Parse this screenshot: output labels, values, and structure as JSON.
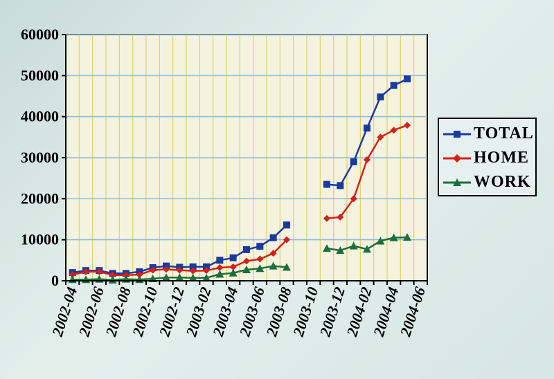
{
  "chart_data": {
    "type": "line",
    "title": "",
    "xlabel": "",
    "ylabel": "",
    "ylim": [
      0,
      60000
    ],
    "y_ticks": [
      0,
      10000,
      20000,
      30000,
      40000,
      50000,
      60000
    ],
    "x_tick_labels": [
      "2002-04",
      "2002-06",
      "2002-08",
      "2002-10",
      "2002-12",
      "2003-02",
      "2003-04",
      "2003-06",
      "2003-08",
      "2003-10",
      "2003-12",
      "2004-02",
      "2004-04",
      "2004-06"
    ],
    "x": [
      "2002-04",
      "2002-05",
      "2002-06",
      "2002-07",
      "2002-08",
      "2002-09",
      "2002-10",
      "2002-11",
      "2002-12",
      "2003-01",
      "2003-02",
      "2003-03",
      "2003-04",
      "2003-05",
      "2003-06",
      "2003-07",
      "2003-08",
      "2003-09",
      "2003-10",
      "2003-11",
      "2003-12",
      "2004-01",
      "2004-02",
      "2004-03",
      "2004-04",
      "2004-05",
      "2004-06"
    ],
    "grid": true,
    "legend_position": "right",
    "series": [
      {
        "name": "TOTAL",
        "color": "#1a3a9e",
        "marker": "square",
        "values": [
          2000,
          2500,
          2500,
          1800,
          1800,
          2200,
          3200,
          3600,
          3300,
          3400,
          3400,
          5000,
          5600,
          7600,
          8400,
          10500,
          13600,
          null,
          null,
          23500,
          23200,
          29000,
          37200,
          44800,
          47600,
          49200,
          null
        ]
      },
      {
        "name": "HOME",
        "color": "#d42018",
        "marker": "diamond",
        "values": [
          1500,
          2200,
          2200,
          1400,
          1400,
          1500,
          2600,
          2800,
          2600,
          2400,
          2500,
          3200,
          3400,
          4800,
          5300,
          6700,
          10000,
          null,
          null,
          15200,
          15500,
          20000,
          29500,
          35000,
          36700,
          37900,
          null
        ]
      },
      {
        "name": "WORK",
        "color": "#1c6e3a",
        "marker": "triangle",
        "values": [
          300,
          300,
          400,
          200,
          400,
          300,
          500,
          800,
          800,
          700,
          700,
          1600,
          1900,
          2700,
          3000,
          3600,
          3300,
          null,
          null,
          7900,
          7400,
          8500,
          7700,
          9700,
          10500,
          10600,
          null
        ]
      }
    ]
  }
}
